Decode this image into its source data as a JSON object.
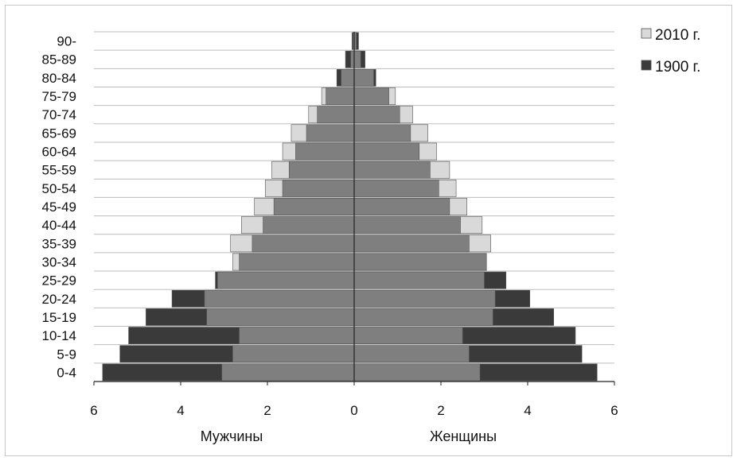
{
  "chart_data": {
    "type": "bar",
    "subtype": "population-pyramid",
    "categories": [
      "0-4",
      "5-9",
      "10-14",
      "15-19",
      "20-24",
      "25-29",
      "30-34",
      "35-39",
      "40-44",
      "45-49",
      "50-54",
      "55-59",
      "60-64",
      "65-69",
      "70-74",
      "75-79",
      "80-84",
      "85-89",
      "90-"
    ],
    "series": [
      {
        "name": "2010 г.",
        "color": "#d9d9d9",
        "male": [
          3.05,
          2.8,
          2.65,
          3.4,
          3.45,
          3.15,
          2.8,
          2.85,
          2.6,
          2.3,
          2.05,
          1.9,
          1.65,
          1.45,
          1.05,
          0.75,
          0.3,
          0.08,
          0.03
        ],
        "female": [
          2.9,
          2.65,
          2.5,
          3.2,
          3.25,
          3.0,
          3.05,
          3.15,
          2.95,
          2.6,
          2.35,
          2.2,
          1.9,
          1.7,
          1.35,
          0.95,
          0.45,
          0.15,
          0.05
        ]
      },
      {
        "name": "1900 г.",
        "color": "#3a3a3a",
        "male": [
          5.8,
          5.4,
          5.2,
          4.8,
          4.2,
          3.2,
          2.65,
          2.35,
          2.1,
          1.85,
          1.65,
          1.5,
          1.35,
          1.1,
          0.85,
          0.65,
          0.4,
          0.2,
          0.05
        ],
        "female": [
          5.6,
          5.25,
          5.1,
          4.6,
          4.05,
          3.5,
          3.05,
          2.65,
          2.45,
          2.2,
          1.95,
          1.75,
          1.5,
          1.3,
          1.05,
          0.8,
          0.5,
          0.25,
          0.1
        ]
      }
    ],
    "overlap_color": "#7f7f7f",
    "x_ticks": [
      "6",
      "4",
      "2",
      "0",
      "2",
      "4",
      "6"
    ],
    "xlim": [
      -6,
      6
    ],
    "xlabel_left": "Мужчины",
    "xlabel_right": "Женщины",
    "legend": [
      "2010 г.",
      "1900 г."
    ],
    "legend_position": "top-right",
    "grid": "horizontal"
  }
}
